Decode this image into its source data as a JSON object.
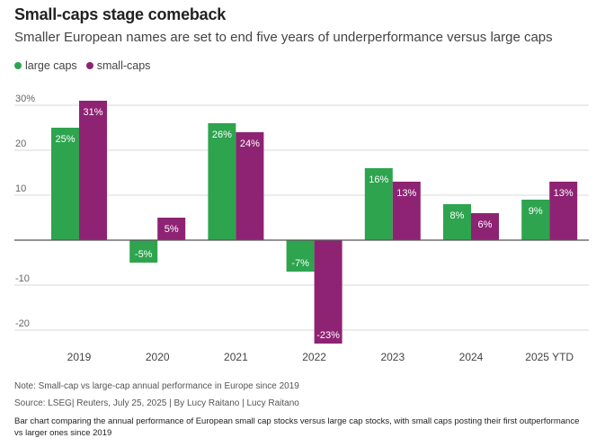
{
  "header": {
    "title": "Small-caps stage comeback",
    "subtitle": "Smaller European names are set to end five years of underperformance versus large caps"
  },
  "colors": {
    "large_caps": "#2ea44f",
    "small_caps": "#8e2373",
    "grid": "#d9d9d9",
    "axis": "#555555"
  },
  "chart_data": {
    "type": "bar",
    "categories": [
      "2019",
      "2020",
      "2021",
      "2022",
      "2023",
      "2024",
      "2025 YTD"
    ],
    "series": [
      {
        "name": "large caps",
        "values": [
          25,
          -5,
          26,
          -7,
          16,
          8,
          9
        ],
        "labels": [
          "25%",
          "-5%",
          "26%",
          "-7%",
          "16%",
          "8%",
          "9%"
        ]
      },
      {
        "name": "small-caps",
        "values": [
          31,
          5,
          24,
          -23,
          13,
          6,
          13
        ],
        "labels": [
          "31%",
          "5%",
          "24%",
          "-23%",
          "13%",
          "6%",
          "13%"
        ]
      }
    ],
    "yticks": [
      30,
      20,
      10,
      -10,
      -20
    ],
    "ytick_labels": [
      "30%",
      "20",
      "10",
      "-10",
      "-20"
    ],
    "ylim": [
      -22,
      32
    ],
    "legend_position": "top-left"
  },
  "footer": {
    "note": "Note: Small-cap vs large-cap annual performance in Europe since 2019",
    "source": "Source: LSEG| Reuters, July 25, 2025 | By Lucy Raitano | Lucy Raitano",
    "description": "Bar chart comparing the annual performance of European small cap stocks versus large cap stocks, with small caps posting their first outperformance vs larger ones since 2019"
  }
}
